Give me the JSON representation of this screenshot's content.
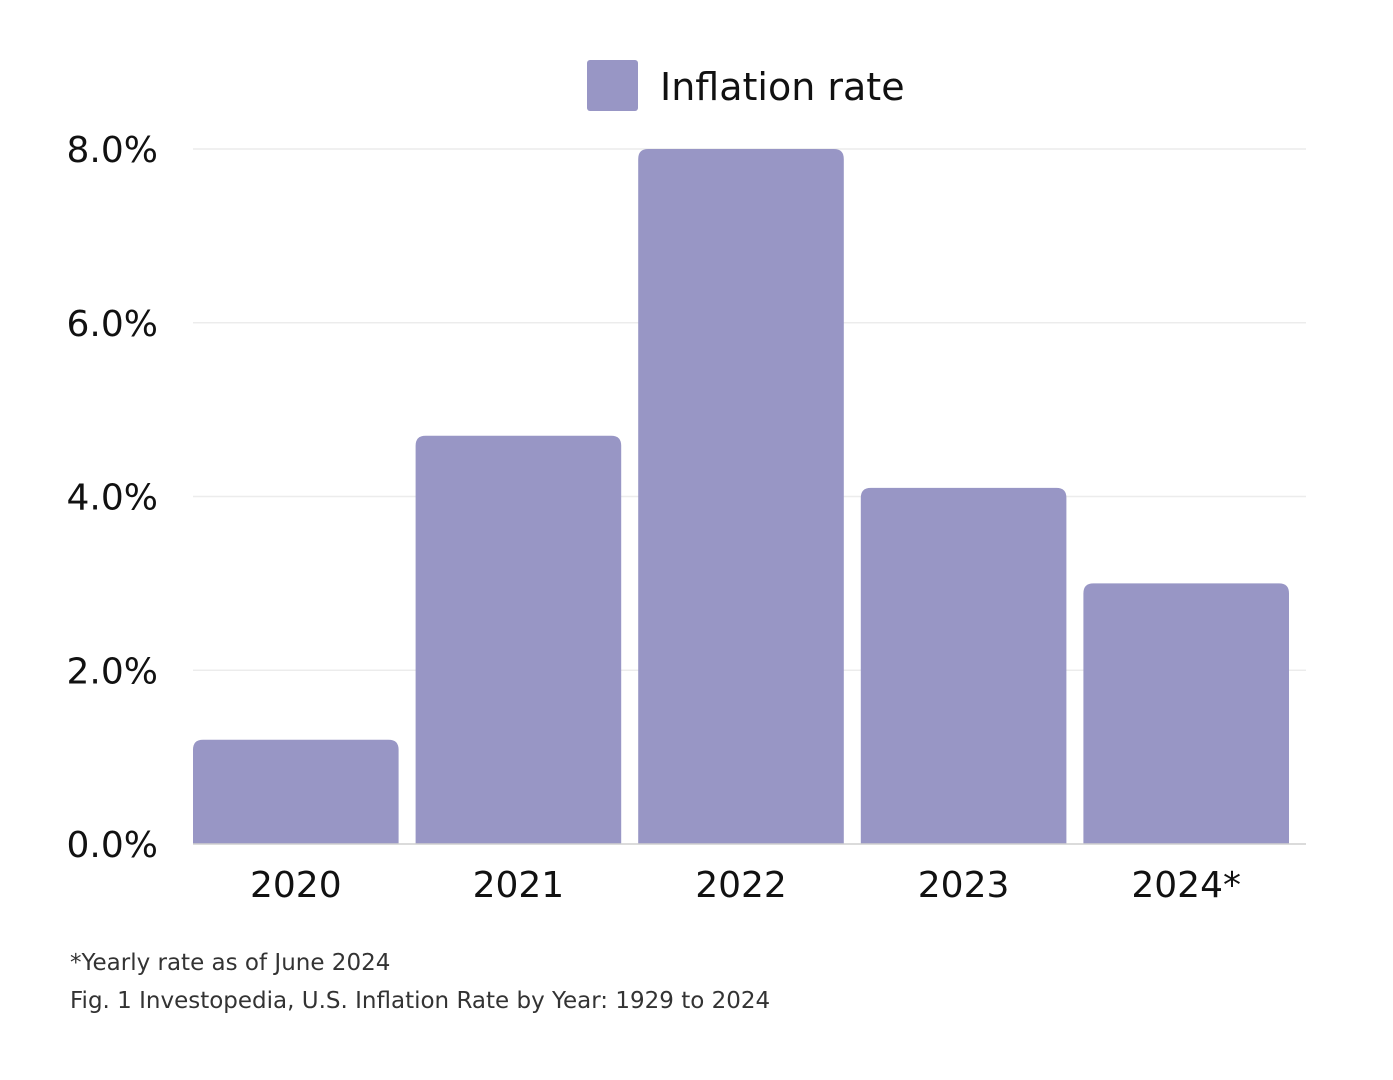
{
  "chart_data": {
    "type": "bar",
    "title": "",
    "xlabel": "",
    "ylabel": "",
    "categories": [
      "2020",
      "2021",
      "2022",
      "2023",
      "2024*"
    ],
    "series": [
      {
        "name": "Inflation rate",
        "values": [
          1.2,
          4.7,
          8.0,
          4.1,
          3.0
        ]
      }
    ],
    "ylim": [
      0,
      8
    ],
    "yticks": [
      "0.0%",
      "2.0%",
      "4.0%",
      "6.0%",
      "8.0%"
    ],
    "ytick_values": [
      0,
      2,
      4,
      6,
      8
    ],
    "grid": true,
    "legend_position": "top-center",
    "bar_color": "#9896c5",
    "grid_color": "#ececec"
  },
  "notes": {
    "footnote": "*Yearly rate as of June 2024",
    "source": "Fig. 1 Investopedia, U.S. Inflation Rate by Year: 1929 to 2024"
  }
}
